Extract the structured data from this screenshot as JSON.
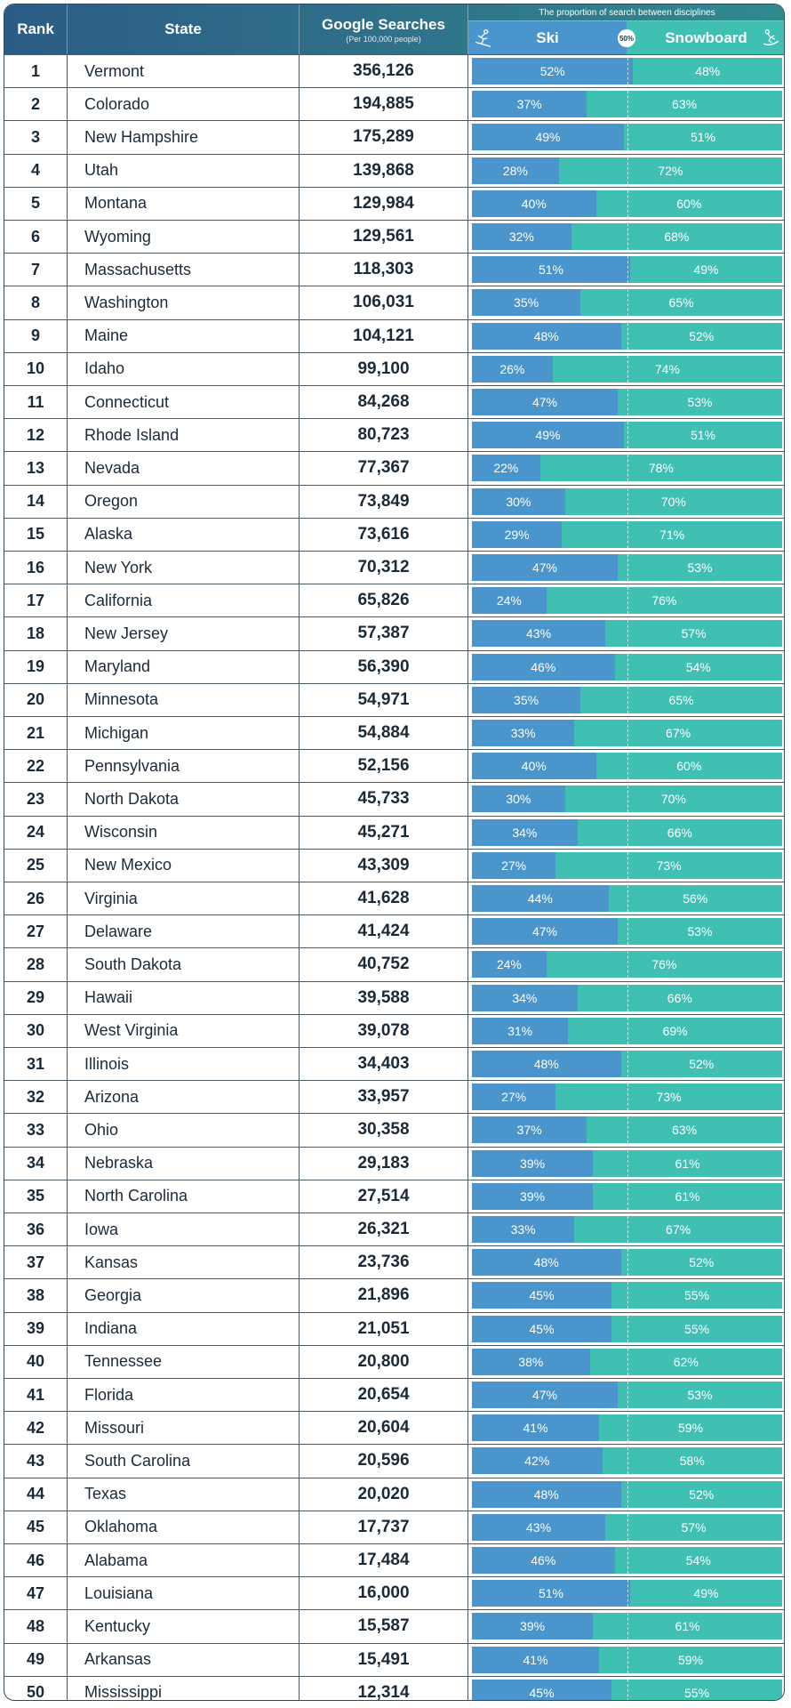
{
  "header": {
    "rank": "Rank",
    "state": "State",
    "searches": "Google Searches",
    "searches_sub": "(Per 100,000 people)",
    "proportion_caption": "The proportion of search between disciplines",
    "ski": "Ski",
    "snowboard": "Snowboard",
    "half_badge": "50%"
  },
  "colors": {
    "ski": "#4a95cc",
    "snowboard": "#3fc0b3",
    "header": "#2f6f89"
  },
  "icons": {
    "ski": "skier-icon",
    "snowboard": "snowboarder-icon"
  },
  "chart_data": {
    "type": "table",
    "columns": [
      "Rank",
      "State",
      "Google Searches",
      "Ski",
      "Snowboard"
    ],
    "rows": [
      {
        "rank": "1",
        "state": "Vermont",
        "searches": "356,126",
        "ski": 52,
        "snowboard": 48
      },
      {
        "rank": "2",
        "state": "Colorado",
        "searches": "194,885",
        "ski": 37,
        "snowboard": 63
      },
      {
        "rank": "3",
        "state": "New Hampshire",
        "searches": "175,289",
        "ski": 49,
        "snowboard": 51
      },
      {
        "rank": "4",
        "state": "Utah",
        "searches": "139,868",
        "ski": 28,
        "snowboard": 72
      },
      {
        "rank": "5",
        "state": "Montana",
        "searches": "129,984",
        "ski": 40,
        "snowboard": 60
      },
      {
        "rank": "6",
        "state": "Wyoming",
        "searches": "129,561",
        "ski": 32,
        "snowboard": 68
      },
      {
        "rank": "7",
        "state": "Massachusetts",
        "searches": "118,303",
        "ski": 51,
        "snowboard": 49
      },
      {
        "rank": "8",
        "state": "Washington",
        "searches": "106,031",
        "ski": 35,
        "snowboard": 65
      },
      {
        "rank": "9",
        "state": "Maine",
        "searches": "104,121",
        "ski": 48,
        "snowboard": 52
      },
      {
        "rank": "10",
        "state": "Idaho",
        "searches": "99,100",
        "ski": 26,
        "snowboard": 74
      },
      {
        "rank": "11",
        "state": "Connecticut",
        "searches": "84,268",
        "ski": 47,
        "snowboard": 53
      },
      {
        "rank": "12",
        "state": "Rhode Island",
        "searches": "80,723",
        "ski": 49,
        "snowboard": 51
      },
      {
        "rank": "13",
        "state": "Nevada",
        "searches": "77,367",
        "ski": 22,
        "snowboard": 78
      },
      {
        "rank": "14",
        "state": "Oregon",
        "searches": "73,849",
        "ski": 30,
        "snowboard": 70
      },
      {
        "rank": "15",
        "state": "Alaska",
        "searches": "73,616",
        "ski": 29,
        "snowboard": 71
      },
      {
        "rank": "16",
        "state": "New York",
        "searches": "70,312",
        "ski": 47,
        "snowboard": 53
      },
      {
        "rank": "17",
        "state": "California",
        "searches": "65,826",
        "ski": 24,
        "snowboard": 76
      },
      {
        "rank": "18",
        "state": "New Jersey",
        "searches": "57,387",
        "ski": 43,
        "snowboard": 57
      },
      {
        "rank": "19",
        "state": "Maryland",
        "searches": "56,390",
        "ski": 46,
        "snowboard": 54
      },
      {
        "rank": "20",
        "state": "Minnesota",
        "searches": "54,971",
        "ski": 35,
        "snowboard": 65
      },
      {
        "rank": "21",
        "state": "Michigan",
        "searches": "54,884",
        "ski": 33,
        "snowboard": 67
      },
      {
        "rank": "22",
        "state": "Pennsylvania",
        "searches": "52,156",
        "ski": 40,
        "snowboard": 60
      },
      {
        "rank": "23",
        "state": "North Dakota",
        "searches": "45,733",
        "ski": 30,
        "snowboard": 70
      },
      {
        "rank": "24",
        "state": "Wisconsin",
        "searches": "45,271",
        "ski": 34,
        "snowboard": 66
      },
      {
        "rank": "25",
        "state": "New Mexico",
        "searches": "43,309",
        "ski": 27,
        "snowboard": 73
      },
      {
        "rank": "26",
        "state": "Virginia",
        "searches": "41,628",
        "ski": 44,
        "snowboard": 56
      },
      {
        "rank": "27",
        "state": "Delaware",
        "searches": "41,424",
        "ski": 47,
        "snowboard": 53
      },
      {
        "rank": "28",
        "state": "South Dakota",
        "searches": "40,752",
        "ski": 24,
        "snowboard": 76
      },
      {
        "rank": "29",
        "state": "Hawaii",
        "searches": "39,588",
        "ski": 34,
        "snowboard": 66
      },
      {
        "rank": "30",
        "state": "West Virginia",
        "searches": "39,078",
        "ski": 31,
        "snowboard": 69
      },
      {
        "rank": "31",
        "state": "Illinois",
        "searches": "34,403",
        "ski": 48,
        "snowboard": 52
      },
      {
        "rank": "32",
        "state": "Arizona",
        "searches": "33,957",
        "ski": 27,
        "snowboard": 73
      },
      {
        "rank": "33",
        "state": "Ohio",
        "searches": "30,358",
        "ski": 37,
        "snowboard": 63
      },
      {
        "rank": "34",
        "state": "Nebraska",
        "searches": "29,183",
        "ski": 39,
        "snowboard": 61
      },
      {
        "rank": "35",
        "state": "North Carolina",
        "searches": "27,514",
        "ski": 39,
        "snowboard": 61
      },
      {
        "rank": "36",
        "state": "Iowa",
        "searches": "26,321",
        "ski": 33,
        "snowboard": 67
      },
      {
        "rank": "37",
        "state": "Kansas",
        "searches": "23,736",
        "ski": 48,
        "snowboard": 52
      },
      {
        "rank": "38",
        "state": "Georgia",
        "searches": "21,896",
        "ski": 45,
        "snowboard": 55
      },
      {
        "rank": "39",
        "state": "Indiana",
        "searches": "21,051",
        "ski": 45,
        "snowboard": 55
      },
      {
        "rank": "40",
        "state": "Tennessee",
        "searches": "20,800",
        "ski": 38,
        "snowboard": 62
      },
      {
        "rank": "41",
        "state": "Florida",
        "searches": "20,654",
        "ski": 47,
        "snowboard": 53
      },
      {
        "rank": "42",
        "state": "Missouri",
        "searches": "20,604",
        "ski": 41,
        "snowboard": 59
      },
      {
        "rank": "43",
        "state": "South Carolina",
        "searches": "20,596",
        "ski": 42,
        "snowboard": 58
      },
      {
        "rank": "44",
        "state": "Texas",
        "searches": "20,020",
        "ski": 48,
        "snowboard": 52
      },
      {
        "rank": "45",
        "state": "Oklahoma",
        "searches": "17,737",
        "ski": 43,
        "snowboard": 57
      },
      {
        "rank": "46",
        "state": "Alabama",
        "searches": "17,484",
        "ski": 46,
        "snowboard": 54
      },
      {
        "rank": "47",
        "state": "Louisiana",
        "searches": "16,000",
        "ski": 51,
        "snowboard": 49
      },
      {
        "rank": "48",
        "state": "Kentucky",
        "searches": "15,587",
        "ski": 39,
        "snowboard": 61
      },
      {
        "rank": "49",
        "state": "Arkansas",
        "searches": "15,491",
        "ski": 41,
        "snowboard": 59
      },
      {
        "rank": "50",
        "state": "Mississippi",
        "searches": "12,314",
        "ski": 45,
        "snowboard": 55
      }
    ]
  }
}
